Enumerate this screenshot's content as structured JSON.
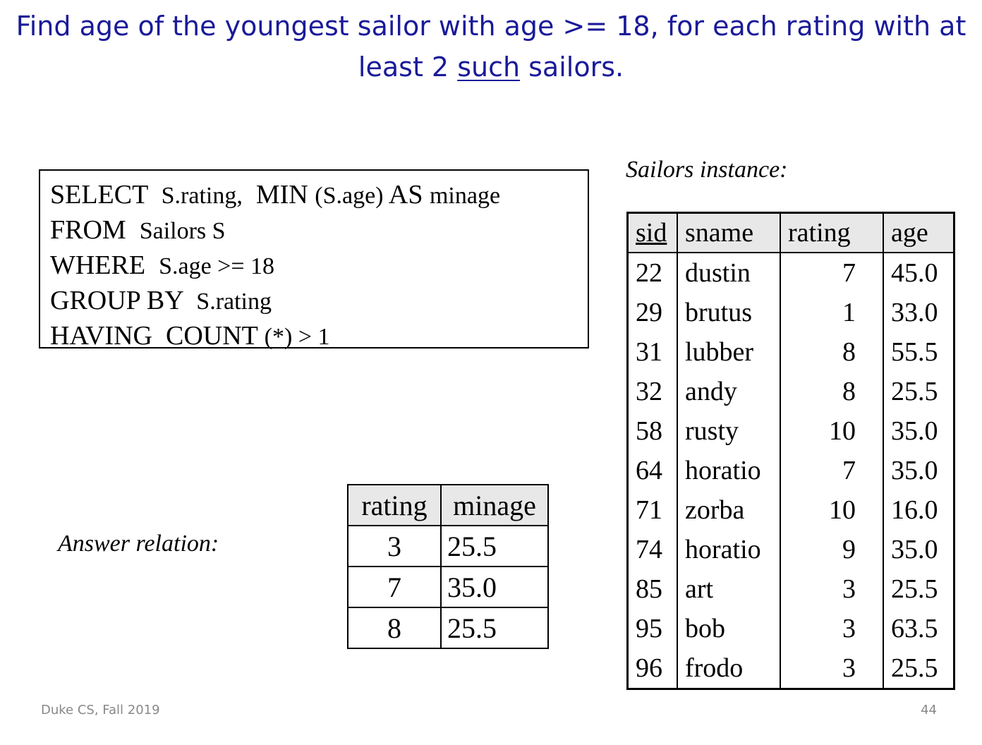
{
  "title": {
    "part1": "Find age of the youngest sailor with age >= 18, for each rating with at least 2 ",
    "underlined": "such",
    "part2": " sailors."
  },
  "sql": [
    {
      "kw": "SELECT",
      "arg": "S.rating,",
      "kw2": "MIN",
      "arg2": "(S.age)",
      "kw3": "AS",
      "arg3": "minage"
    },
    {
      "kw": "FROM",
      "arg": "Sailors S"
    },
    {
      "kw": "WHERE",
      "arg": "S.age >= 18"
    },
    {
      "kw": "GROUP BY",
      "arg": "S.rating"
    },
    {
      "kw": "HAVING",
      "kw2": "COUNT",
      "arg2": "(*) > 1"
    }
  ],
  "sailors_caption": "Sailors instance:",
  "sailors": {
    "headers": [
      "sid",
      "sname",
      "rating",
      "age"
    ],
    "rows": [
      [
        "22",
        "dustin",
        "7",
        "45.0"
      ],
      [
        "29",
        "brutus",
        "1",
        "33.0"
      ],
      [
        "31",
        "lubber",
        "8",
        "55.5"
      ],
      [
        "32",
        "andy",
        "8",
        "25.5"
      ],
      [
        "58",
        "rusty",
        "10",
        "35.0"
      ],
      [
        "64",
        "horatio",
        "7",
        "35.0"
      ],
      [
        "71",
        "zorba",
        "10",
        "16.0"
      ],
      [
        "74",
        "horatio",
        "9",
        "35.0"
      ],
      [
        "85",
        "art",
        "3",
        "25.5"
      ],
      [
        "95",
        "bob",
        "3",
        "63.5"
      ],
      [
        "96",
        "frodo",
        "3",
        "25.5"
      ]
    ]
  },
  "answer_caption": "Answer relation:",
  "answer": {
    "headers": [
      "rating",
      "minage"
    ],
    "rows": [
      [
        "3",
        "25.5"
      ],
      [
        "7",
        "35.0"
      ],
      [
        "8",
        "25.5"
      ]
    ]
  },
  "footer": {
    "course": "Duke CS, Fall 2019",
    "page": "44"
  }
}
